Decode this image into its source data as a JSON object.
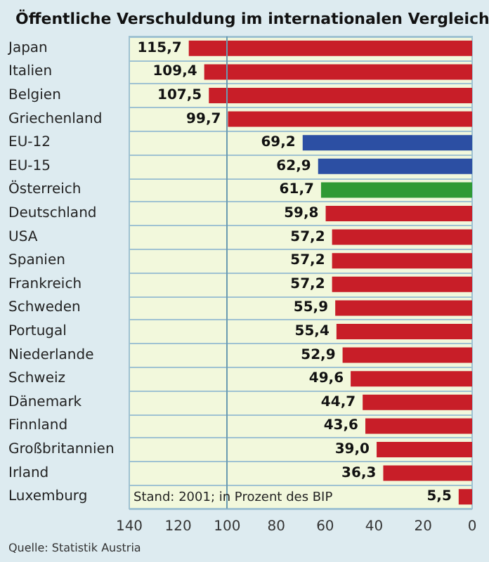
{
  "chart_data": {
    "type": "bar",
    "orientation": "horizontal",
    "title": "Öffentliche Verschuldung im internationalen Vergleich",
    "categories": [
      "Japan",
      "Italien",
      "Belgien",
      "Griechenland",
      "EU-12",
      "EU-15",
      "Österreich",
      "Deutschland",
      "USA",
      "Spanien",
      "Frankreich",
      "Schweden",
      "Portugal",
      "Niederlande",
      "Schweiz",
      "Dänemark",
      "Finnland",
      "Großbritannien",
      "Irland",
      "Luxemburg"
    ],
    "values": [
      115.7,
      109.4,
      107.5,
      99.7,
      69.2,
      62.9,
      61.7,
      59.8,
      57.2,
      57.2,
      57.2,
      55.9,
      55.4,
      52.9,
      49.6,
      44.7,
      43.6,
      39.0,
      36.3,
      5.5
    ],
    "value_labels": [
      "115,7",
      "109,4",
      "107,5",
      "99,7",
      "69,2",
      "62,9",
      "61,7",
      "59,8",
      "57,2",
      "57,2",
      "57,2",
      "55,9",
      "55,4",
      "52,9",
      "49,6",
      "44,7",
      "43,6",
      "39,0",
      "36,3",
      "5,5"
    ],
    "colors": [
      "#c81e28",
      "#c81e28",
      "#c81e28",
      "#c81e28",
      "#2c4fa3",
      "#2c4fa3",
      "#2f9a35",
      "#c81e28",
      "#c81e28",
      "#c81e28",
      "#c81e28",
      "#c81e28",
      "#c81e28",
      "#c81e28",
      "#c81e28",
      "#c81e28",
      "#c81e28",
      "#c81e28",
      "#c81e28",
      "#c81e28"
    ],
    "xlim": [
      140,
      0
    ],
    "xticks": [
      140,
      120,
      100,
      80,
      60,
      40,
      20,
      0
    ],
    "ref_lines": [
      {
        "axis": "x",
        "value": 100,
        "label": null,
        "color": "#6a9bb0"
      }
    ],
    "grid": false,
    "annotations": [
      "Stand: 2001; in Prozent des BIP",
      "Quelle: Statistik Austria"
    ]
  }
}
